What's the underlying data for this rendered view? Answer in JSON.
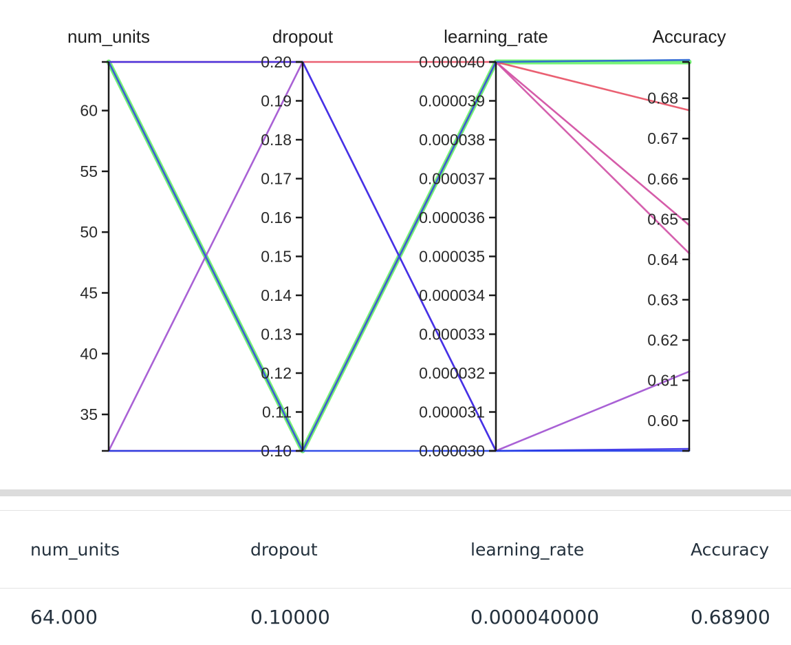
{
  "chart_data": {
    "type": "parallel_coordinates",
    "axes": [
      {
        "name": "num_units",
        "range": [
          32,
          64
        ],
        "ticks": [
          35,
          40,
          45,
          50,
          55,
          60
        ],
        "tick_labels": [
          "35",
          "40",
          "45",
          "50",
          "55",
          "60"
        ]
      },
      {
        "name": "dropout",
        "range": [
          0.1,
          0.2
        ],
        "ticks": [
          0.1,
          0.11,
          0.12,
          0.13,
          0.14,
          0.15,
          0.16,
          0.17,
          0.18,
          0.19,
          0.2
        ],
        "tick_labels": [
          "0.10",
          "0.11",
          "0.12",
          "0.13",
          "0.14",
          "0.15",
          "0.16",
          "0.17",
          "0.18",
          "0.19",
          "0.20"
        ]
      },
      {
        "name": "learning_rate",
        "range": [
          3e-05,
          4e-05
        ],
        "ticks": [
          3e-05,
          3.1e-05,
          3.2e-05,
          3.3e-05,
          3.4e-05,
          3.5e-05,
          3.6e-05,
          3.7e-05,
          3.8e-05,
          3.9e-05,
          4e-05
        ],
        "tick_labels": [
          "0.000030",
          "0.000031",
          "0.000032",
          "0.000033",
          "0.000034",
          "0.000035",
          "0.000036",
          "0.000037",
          "0.000038",
          "0.000039",
          "0.000040"
        ]
      },
      {
        "name": "Accuracy",
        "range": [
          0.5925,
          0.689
        ],
        "ticks": [
          0.6,
          0.61,
          0.62,
          0.63,
          0.64,
          0.65,
          0.66,
          0.67,
          0.68
        ],
        "tick_labels": [
          "0.60",
          "0.61",
          "0.62",
          "0.63",
          "0.64",
          "0.65",
          "0.66",
          "0.67",
          "0.68"
        ]
      }
    ],
    "lines": [
      {
        "values": [
          64,
          0.1,
          4e-05,
          0.689
        ],
        "color": "#5ef25e",
        "highlight": true
      },
      {
        "values": [
          64,
          0.2,
          4e-05,
          0.677
        ],
        "color": "#e84f63"
      },
      {
        "values": [
          32,
          0.1,
          4e-05,
          0.6485
        ],
        "color": "#d04aa0"
      },
      {
        "values": [
          64,
          0.1,
          4e-05,
          0.6415
        ],
        "color": "#d050a5"
      },
      {
        "values": [
          32,
          0.2,
          3e-05,
          0.6122
        ],
        "color": "#a050d0"
      },
      {
        "values": [
          64,
          0.2,
          3e-05,
          0.593
        ],
        "color": "#3a2ee8"
      },
      {
        "values": [
          32,
          0.1,
          3e-05,
          0.5925
        ],
        "color": "#1e3ce6"
      },
      {
        "values": [
          64,
          0.1,
          4e-05,
          0.6895
        ],
        "color": "#2a62d8"
      }
    ]
  },
  "table": {
    "headers": [
      "num_units",
      "dropout",
      "learning_rate",
      "Accuracy"
    ],
    "row": [
      "64.000",
      "0.10000",
      "0.000040000",
      "0.68900"
    ]
  }
}
